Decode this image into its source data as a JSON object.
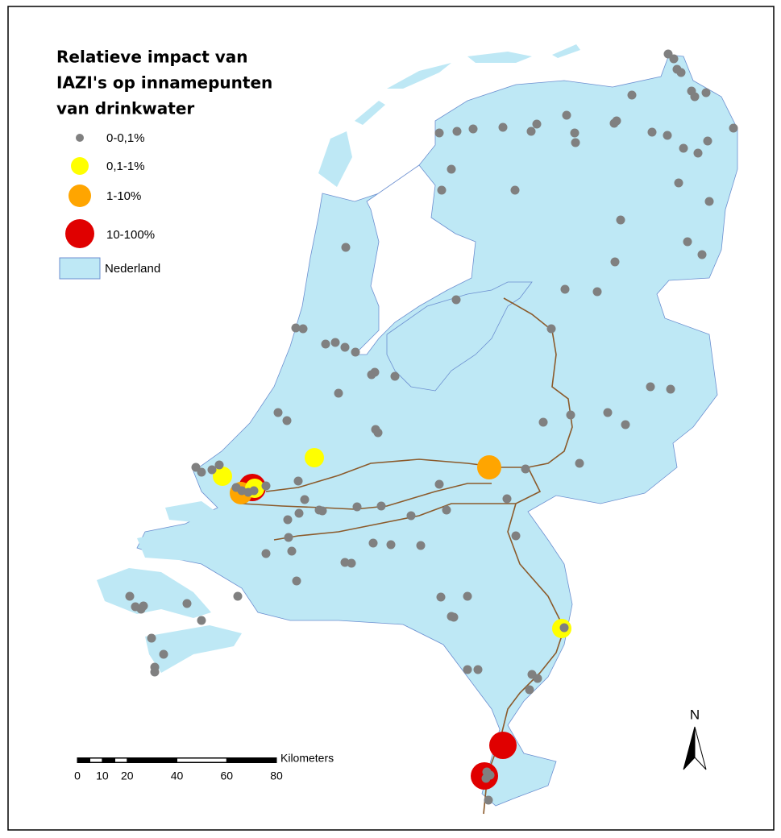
{
  "title": [
    "Relatieve impact van",
    "IAZI's op innamepunten",
    "van drinkwater"
  ],
  "legend": {
    "items": [
      {
        "label": "0-0,1%",
        "color": "#808080"
      },
      {
        "label": "0,1-1%",
        "color": "#ffff00"
      },
      {
        "label": "1-10%",
        "color": "#ffa500"
      },
      {
        "label": "10-100%",
        "color": "#e00000"
      }
    ],
    "area": {
      "label": "Nederland",
      "color": "#bee8f5"
    }
  },
  "scale_bar": {
    "unit": "Kilometers",
    "ticks": [
      0,
      10,
      20,
      40,
      60,
      80
    ]
  },
  "north_arrow": "N"
}
